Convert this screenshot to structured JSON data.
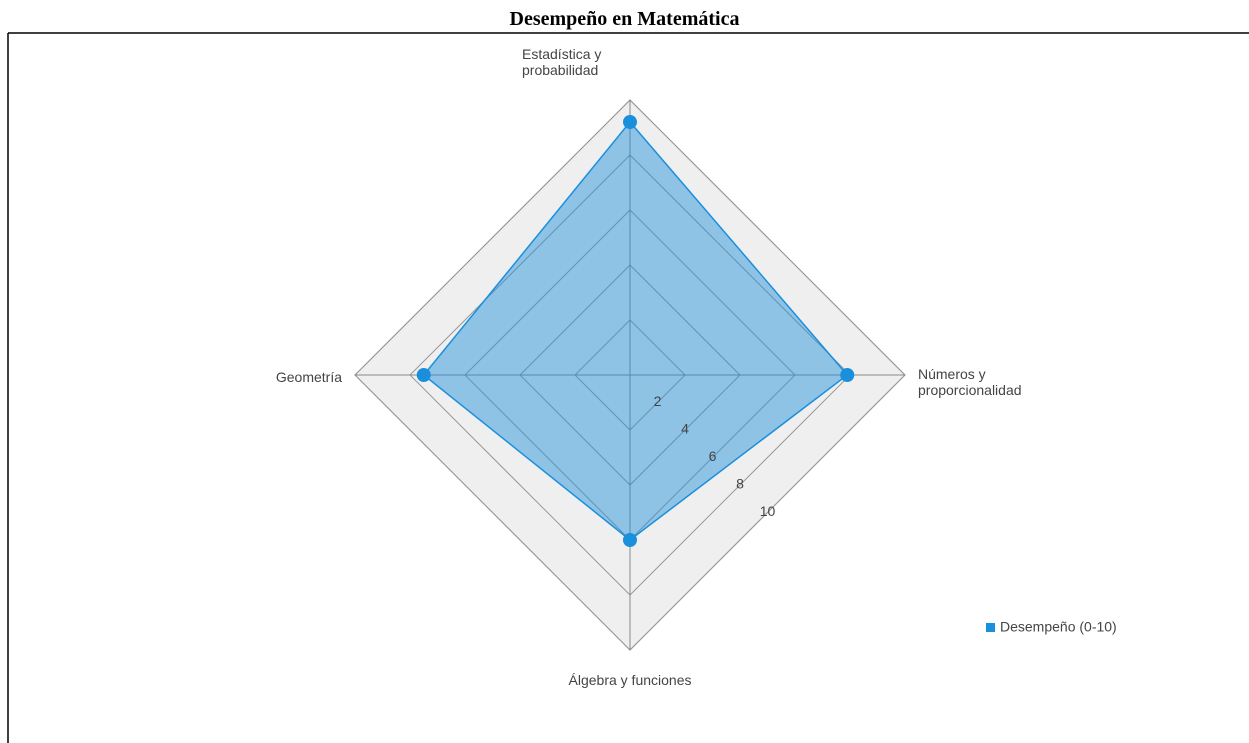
{
  "chart_data": {
    "type": "radar",
    "title": "Desempeño en Matemática",
    "categories": [
      "Estadística y probabilidad",
      "Números y proporcionalidad",
      "Álgebra y funciones",
      "Geometría"
    ],
    "series": [
      {
        "name": "Desempeño (0-10)",
        "color": "#1a8fdc",
        "values": [
          9.2,
          7.9,
          6.0,
          7.5
        ]
      }
    ],
    "rlim": [
      0,
      10
    ],
    "rticks": [
      2,
      4,
      6,
      8,
      10
    ],
    "grid": true,
    "legend": "lower right"
  }
}
